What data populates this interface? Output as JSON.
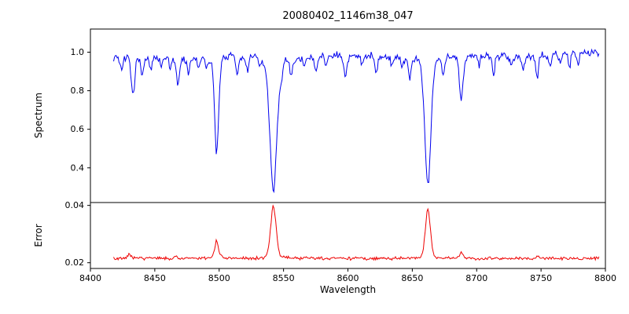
{
  "chart_data": {
    "type": "line",
    "title": "20080402_1146m38_047",
    "xlabel": "Wavelength",
    "xlim": [
      8400,
      8800
    ],
    "xticks": [
      {
        "v": 8400,
        "label": "8400"
      },
      {
        "v": 8450,
        "label": "8450"
      },
      {
        "v": 8500,
        "label": "8500"
      },
      {
        "v": 8550,
        "label": "8550"
      },
      {
        "v": 8600,
        "label": "8600"
      },
      {
        "v": 8650,
        "label": "8650"
      },
      {
        "v": 8700,
        "label": "8700"
      },
      {
        "v": 8750,
        "label": "8750"
      },
      {
        "v": 8800,
        "label": "8800"
      }
    ],
    "panels": [
      {
        "ylabel": "Spectrum",
        "ylim": [
          0.22,
          1.12
        ],
        "yticks": [
          {
            "v": 0.4,
            "label": "0.4"
          },
          {
            "v": 0.6,
            "label": "0.6"
          },
          {
            "v": 0.8,
            "label": "0.8"
          },
          {
            "v": 1.0,
            "label": "1.0"
          }
        ],
        "color": "#0000ee"
      },
      {
        "ylabel": "Error",
        "ylim": [
          0.018,
          0.041
        ],
        "yticks": [
          {
            "v": 0.02,
            "label": "0.02"
          },
          {
            "v": 0.04,
            "label": "0.04"
          }
        ],
        "color": "#ee0000"
      }
    ],
    "x_range_data": [
      8418,
      8795
    ],
    "num_points": 540,
    "seed": 7,
    "spectrum": {
      "baseline": 0.97,
      "tilt": 5e-05,
      "wiggle_amp": 0.006,
      "wiggle_freq": 0.07,
      "noise": 0.025,
      "absorption_lines": [
        [
          8498.0,
          0.5,
          1.6
        ],
        [
          8542.1,
          0.7,
          2.8
        ],
        [
          8662.1,
          0.67,
          2.4
        ],
        [
          8424,
          0.07,
          1.0
        ],
        [
          8433,
          0.2,
          1.4
        ],
        [
          8440,
          0.09,
          1.0
        ],
        [
          8447,
          0.06,
          0.9
        ],
        [
          8455,
          0.05,
          0.9
        ],
        [
          8462,
          0.06,
          0.9
        ],
        [
          8468,
          0.13,
          1.2
        ],
        [
          8476,
          0.08,
          1.0
        ],
        [
          8484,
          0.05,
          0.9
        ],
        [
          8490,
          0.06,
          0.9
        ],
        [
          8514,
          0.1,
          1.1
        ],
        [
          8522,
          0.07,
          1.0
        ],
        [
          8532,
          0.05,
          0.9
        ],
        [
          8548.5,
          0.06,
          0.9
        ],
        [
          8556,
          0.09,
          1.0
        ],
        [
          8566,
          0.05,
          0.9
        ],
        [
          8575,
          0.07,
          1.0
        ],
        [
          8583,
          0.06,
          0.9
        ],
        [
          8598,
          0.11,
          1.2
        ],
        [
          8611,
          0.06,
          0.9
        ],
        [
          8622,
          0.08,
          1.0
        ],
        [
          8634,
          0.05,
          0.9
        ],
        [
          8642,
          0.06,
          0.9
        ],
        [
          8648,
          0.1,
          1.1
        ],
        [
          8674,
          0.11,
          1.1
        ],
        [
          8688,
          0.24,
          1.5
        ],
        [
          8702,
          0.06,
          0.9
        ],
        [
          8713,
          0.11,
          1.1
        ],
        [
          8727,
          0.05,
          0.9
        ],
        [
          8736,
          0.07,
          1.0
        ],
        [
          8747,
          0.11,
          1.1
        ],
        [
          8757,
          0.06,
          0.9
        ],
        [
          8765,
          0.05,
          0.9
        ],
        [
          8772,
          0.07,
          1.0
        ],
        [
          8779,
          0.05,
          0.9
        ]
      ]
    },
    "error": {
      "baseline": 0.0215,
      "noise": 0.0007,
      "spikes": [
        [
          8430,
          0.0012,
          1.5
        ],
        [
          8466,
          0.0008,
          1.2
        ],
        [
          8498.0,
          0.006,
          1.6
        ],
        [
          8542.1,
          0.0185,
          2.2
        ],
        [
          8662.1,
          0.0172,
          2.0
        ],
        [
          8688,
          0.002,
          1.3
        ],
        [
          8747,
          0.0009,
          1.2
        ]
      ]
    }
  }
}
